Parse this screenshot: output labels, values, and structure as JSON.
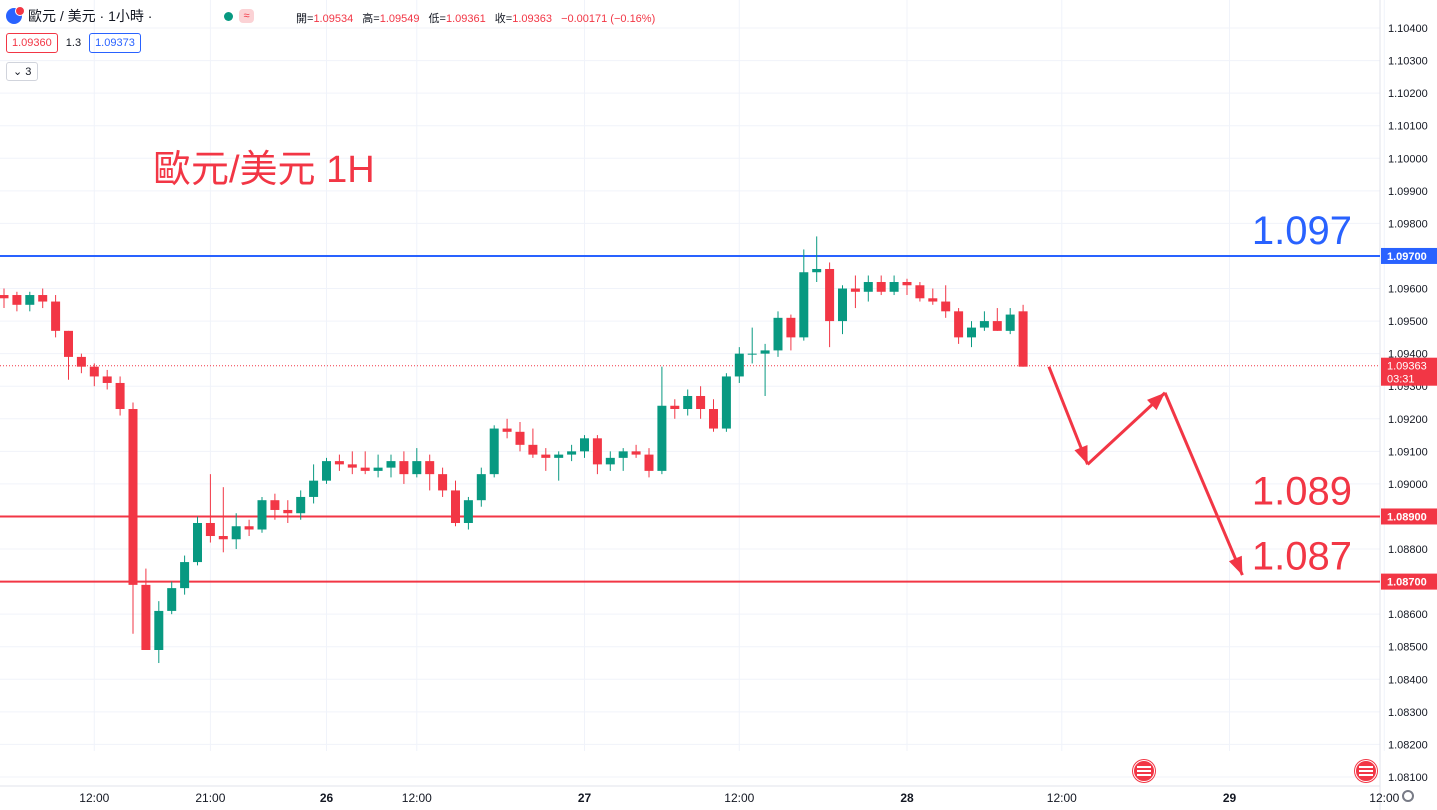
{
  "header": {
    "symbol_title": "歐元 / 美元 · 1小時 ·",
    "approx_badge": "≈",
    "ohlc": {
      "open_label": "開=",
      "open": "1.09534",
      "high_label": "高=",
      "high": "1.09549",
      "low_label": "低=",
      "low": "1.09361",
      "close_label": "收=",
      "close": "1.09363",
      "change": "−0.00171 (−0.16%)"
    },
    "bid": "1.09360",
    "spread": "1.3",
    "ask": "1.09373",
    "indicators_toggle": "3"
  },
  "colors": {
    "up": "#089981",
    "down": "#f23645",
    "resistance": "#2962ff",
    "support": "#f23645",
    "grid": "#f0f3fa"
  },
  "chart_data": {
    "type": "candlestick",
    "title": "歐元/美元 1H",
    "ylim": [
      1.0805,
      1.1045
    ],
    "y_ticks": [
      "1.10400",
      "1.10300",
      "1.10200",
      "1.10100",
      "1.10000",
      "1.09900",
      "1.09800",
      "1.09700",
      "1.09600",
      "1.09500",
      "1.09400",
      "1.09300",
      "1.09200",
      "1.09100",
      "1.09000",
      "1.08900",
      "1.08800",
      "1.08700",
      "1.08600",
      "1.08500",
      "1.08400",
      "1.08300",
      "1.08200",
      "1.08100"
    ],
    "x_ticks": [
      {
        "label": "12:00",
        "i": 7
      },
      {
        "label": "21:00",
        "i": 16
      },
      {
        "label": "26",
        "i": 25
      },
      {
        "label": "12:00",
        "i": 32
      },
      {
        "label": "27",
        "i": 45
      },
      {
        "label": "12:00",
        "i": 57
      },
      {
        "label": "28",
        "i": 70
      },
      {
        "label": "12:00",
        "i": 82
      },
      {
        "label": "29",
        "i": 95
      },
      {
        "label": "12:00",
        "i": 107
      }
    ],
    "candles": [
      [
        1.0958,
        1.096,
        1.0954,
        1.0957
      ],
      [
        1.0958,
        1.0959,
        1.0953,
        1.0955
      ],
      [
        1.0955,
        1.0959,
        1.0953,
        1.0958
      ],
      [
        1.0958,
        1.096,
        1.0954,
        1.0956
      ],
      [
        1.0956,
        1.0958,
        1.0945,
        1.0947
      ],
      [
        1.0947,
        1.0947,
        1.0932,
        1.0939
      ],
      [
        1.0939,
        1.094,
        1.0934,
        1.0936
      ],
      [
        1.0936,
        1.0937,
        1.093,
        1.0933
      ],
      [
        1.0933,
        1.0935,
        1.0929,
        1.0931
      ],
      [
        1.0931,
        1.0933,
        1.0921,
        1.0923
      ],
      [
        1.0923,
        1.0925,
        1.0854,
        1.0869
      ],
      [
        1.0869,
        1.0874,
        1.0849,
        1.0849
      ],
      [
        1.0849,
        1.0864,
        1.0845,
        1.0861
      ],
      [
        1.0861,
        1.087,
        1.086,
        1.0868
      ],
      [
        1.0868,
        1.0878,
        1.0866,
        1.0876
      ],
      [
        1.0876,
        1.089,
        1.0875,
        1.0888
      ],
      [
        1.0888,
        1.0903,
        1.0882,
        1.0884
      ],
      [
        1.0884,
        1.0899,
        1.0879,
        1.0883
      ],
      [
        1.0883,
        1.0891,
        1.088,
        1.0887
      ],
      [
        1.0887,
        1.0889,
        1.0884,
        1.0886
      ],
      [
        1.0886,
        1.0896,
        1.0885,
        1.0895
      ],
      [
        1.0895,
        1.0897,
        1.0889,
        1.0892
      ],
      [
        1.0892,
        1.0895,
        1.0888,
        1.0891
      ],
      [
        1.0891,
        1.0898,
        1.0889,
        1.0896
      ],
      [
        1.0896,
        1.0906,
        1.0894,
        1.0901
      ],
      [
        1.0901,
        1.0908,
        1.09,
        1.0907
      ],
      [
        1.0907,
        1.0909,
        1.0904,
        1.0906
      ],
      [
        1.0906,
        1.091,
        1.0903,
        1.0905
      ],
      [
        1.0905,
        1.091,
        1.0903,
        1.0904
      ],
      [
        1.0904,
        1.0909,
        1.0902,
        1.0905
      ],
      [
        1.0905,
        1.0909,
        1.0902,
        1.0907
      ],
      [
        1.0907,
        1.091,
        1.09,
        1.0903
      ],
      [
        1.0903,
        1.0911,
        1.0902,
        1.0907
      ],
      [
        1.0907,
        1.0909,
        1.0898,
        1.0903
      ],
      [
        1.0903,
        1.0905,
        1.0896,
        1.0898
      ],
      [
        1.0898,
        1.0901,
        1.0887,
        1.0888
      ],
      [
        1.0888,
        1.0896,
        1.0886,
        1.0895
      ],
      [
        1.0895,
        1.0905,
        1.0893,
        1.0903
      ],
      [
        1.0903,
        1.0918,
        1.0902,
        1.0917
      ],
      [
        1.0917,
        1.092,
        1.0914,
        1.0916
      ],
      [
        1.0916,
        1.0919,
        1.091,
        1.0912
      ],
      [
        1.0912,
        1.0917,
        1.0908,
        1.0909
      ],
      [
        1.0909,
        1.0911,
        1.0904,
        1.0908
      ],
      [
        1.0908,
        1.091,
        1.0901,
        1.0909
      ],
      [
        1.0909,
        1.0912,
        1.0907,
        1.091
      ],
      [
        1.091,
        1.0915,
        1.0908,
        1.0914
      ],
      [
        1.0914,
        1.0915,
        1.0903,
        1.0906
      ],
      [
        1.0906,
        1.091,
        1.0904,
        1.0908
      ],
      [
        1.0908,
        1.0911,
        1.0904,
        1.091
      ],
      [
        1.091,
        1.0912,
        1.0908,
        1.0909
      ],
      [
        1.0909,
        1.0911,
        1.0902,
        1.0904
      ],
      [
        1.0904,
        1.0936,
        1.0903,
        1.0924
      ],
      [
        1.0924,
        1.0926,
        1.092,
        1.0923
      ],
      [
        1.0923,
        1.0929,
        1.0921,
        1.0927
      ],
      [
        1.0927,
        1.093,
        1.092,
        1.0923
      ],
      [
        1.0923,
        1.0926,
        1.0916,
        1.0917
      ],
      [
        1.0917,
        1.0934,
        1.0916,
        1.0933
      ],
      [
        1.0933,
        1.0942,
        1.0931,
        1.094
      ],
      [
        1.094,
        1.0948,
        1.0937,
        1.094
      ],
      [
        1.094,
        1.0943,
        1.0927,
        1.0941
      ],
      [
        1.0941,
        1.0953,
        1.0939,
        1.0951
      ],
      [
        1.0951,
        1.0952,
        1.0941,
        1.0945
      ],
      [
        1.0945,
        1.0972,
        1.0944,
        1.0965
      ],
      [
        1.0965,
        1.0976,
        1.0962,
        1.0966
      ],
      [
        1.0966,
        1.0968,
        1.0942,
        1.095
      ],
      [
        1.095,
        1.0961,
        1.0946,
        1.096
      ],
      [
        1.096,
        1.0964,
        1.0954,
        1.0959
      ],
      [
        1.0959,
        1.0964,
        1.0956,
        1.0962
      ],
      [
        1.0962,
        1.0964,
        1.0958,
        1.0959
      ],
      [
        1.0959,
        1.0964,
        1.0958,
        1.0962
      ],
      [
        1.0962,
        1.0963,
        1.0958,
        1.0961
      ],
      [
        1.0961,
        1.0962,
        1.0956,
        1.0957
      ],
      [
        1.0957,
        1.096,
        1.0955,
        1.0956
      ],
      [
        1.0956,
        1.0961,
        1.0951,
        1.0953
      ],
      [
        1.0953,
        1.0954,
        1.0943,
        1.0945
      ],
      [
        1.0945,
        1.095,
        1.0942,
        1.0948
      ],
      [
        1.0948,
        1.0953,
        1.0947,
        1.095
      ],
      [
        1.095,
        1.0954,
        1.0947,
        1.0947
      ],
      [
        1.0947,
        1.0954,
        1.0946,
        1.0952
      ],
      [
        1.0953,
        1.0955,
        1.0936,
        1.0936
      ]
    ],
    "horizontal_lines": [
      {
        "value": 1.097,
        "label": "1.097",
        "axis_label": "1.09700",
        "color": "#2962ff"
      },
      {
        "value": 1.089,
        "label": "1.089",
        "axis_label": "1.08900",
        "color": "#f23645"
      },
      {
        "value": 1.087,
        "label": "1.087",
        "axis_label": "1.08700",
        "color": "#f23645"
      }
    ],
    "last_price": {
      "value": 1.09363,
      "label": "1.09363",
      "countdown": "03:31"
    },
    "forecast_path": [
      {
        "i": 81,
        "price": 1.0936
      },
      {
        "i": 84,
        "price": 1.0906
      },
      {
        "i": 90,
        "price": 1.0928
      },
      {
        "i": 96,
        "price": 1.0872
      }
    ]
  }
}
